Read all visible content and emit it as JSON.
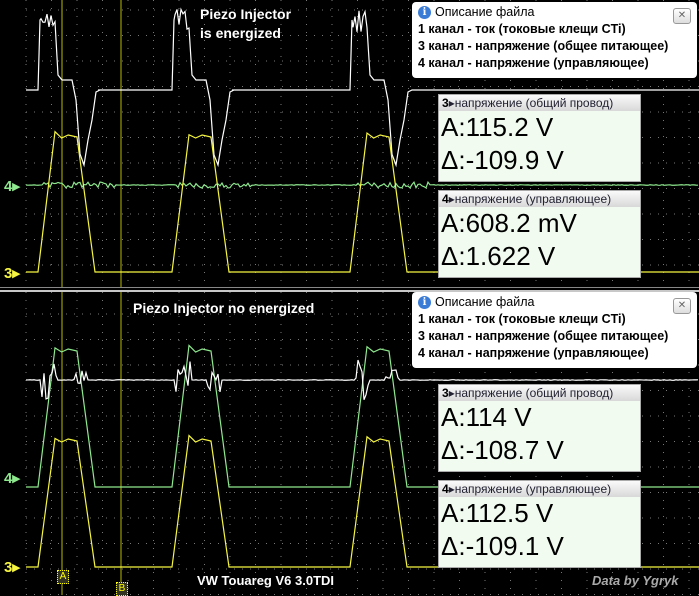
{
  "colors": {
    "ch1": "#ffffff",
    "ch3": "#f5f542",
    "ch4": "#8ee88e",
    "grid": "#777777",
    "cursor": "#b8b800"
  },
  "top": {
    "caption_line1": "Piezo Injector",
    "caption_line2": "is energized",
    "info": {
      "title": "Описание файла",
      "icon": "info-icon",
      "close": "✕",
      "lines": [
        "1 канал - ток (токовые клещи CTi)",
        "3 канал - напряжение (общее питающее)",
        "4 канал - напряжение (управляющее)"
      ]
    },
    "meas3": {
      "ch": "3",
      "label": "напряжение (общий провод)",
      "a": "A:115.2 V",
      "d": "Δ:-109.9 V"
    },
    "meas4": {
      "ch": "4",
      "label": "напряжение (управляющее)",
      "a": "A:608.2 mV",
      "d": "Δ:1.622 V"
    }
  },
  "bottom": {
    "caption": "Piezo Injector no energized",
    "info": {
      "title": "Описание файла",
      "icon": "info-icon",
      "close": "✕",
      "lines": [
        "1 канал - ток (токовые клещи CTi)",
        "3 канал - напряжение (общее питающее)",
        "4 канал - напряжение (управляющее)"
      ]
    },
    "meas3": {
      "ch": "3",
      "label": "напряжение (общий провод)",
      "a": "A:114 V",
      "d": "Δ:-108.7 V"
    },
    "meas4": {
      "ch": "4",
      "label": "напряжение (управляющее)",
      "a": "A:112.5 V",
      "d": "Δ:-109.1 V"
    }
  },
  "markers": {
    "ch3": "3▸",
    "ch4": "4▸"
  },
  "cursors": {
    "a": "A",
    "b": "B"
  },
  "footer": "VW Touareg V6 3.0TDI",
  "credit": "Data by Ygryk"
}
